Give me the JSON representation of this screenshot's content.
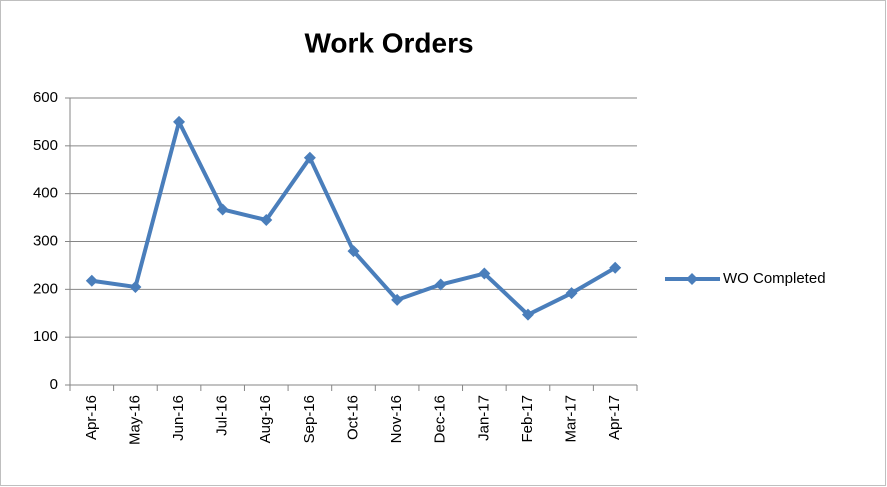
{
  "chart_data": {
    "type": "line",
    "title": "Work Orders",
    "categories": [
      "Apr-16",
      "May-16",
      "Jun-16",
      "Jul-16",
      "Aug-16",
      "Sep-16",
      "Oct-16",
      "Nov-16",
      "Dec-16",
      "Jan-17",
      "Feb-17",
      "Mar-17",
      "Apr-17"
    ],
    "series": [
      {
        "name": "WO Completed",
        "color": "#4a7ebb",
        "values": [
          218,
          205,
          550,
          367,
          345,
          475,
          280,
          178,
          210,
          233,
          147,
          192,
          245
        ]
      }
    ],
    "ylim": [
      0,
      600
    ],
    "yticks": [
      0,
      100,
      200,
      300,
      400,
      500,
      600
    ],
    "grid": true,
    "legend": "right"
  }
}
